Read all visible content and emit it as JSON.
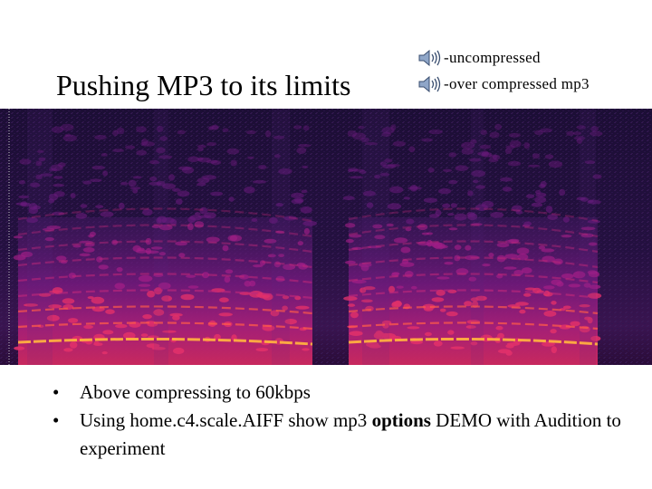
{
  "slide": {
    "title": "Pushing MP3 to its limits"
  },
  "audio_links": [
    {
      "label": "-uncompressed",
      "icon": "speaker-icon"
    },
    {
      "label": "-over compressed mp3",
      "icon": "speaker-icon"
    }
  ],
  "spectrogram": {
    "icon": "spectrogram-image",
    "colors": {
      "background": "#1a0b2e",
      "mid": "#8a1a8c",
      "high": "#ff4a4a",
      "peak": "#ffd040"
    }
  },
  "bullets": {
    "glyph": "•",
    "item1": "Above compressing to 60kbps",
    "item2_prefix": "Using home.c4.scale.AIFF show mp3 ",
    "item2_bold": "options",
    "item2_suffix": "  DEMO with Audition to experiment"
  }
}
